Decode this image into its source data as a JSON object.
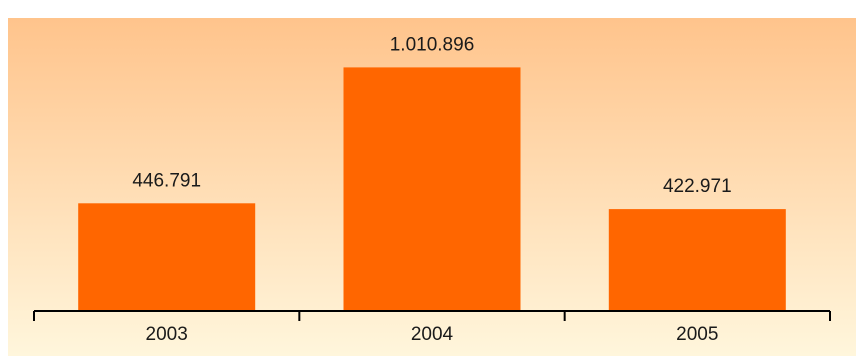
{
  "colors": {
    "bar": "#ff6600",
    "background_top": "#ffc48c",
    "background_bottom": "#fff6dc",
    "axis": "#000000"
  },
  "chart_data": {
    "type": "bar",
    "categories": [
      "2003",
      "2004",
      "2005"
    ],
    "values": [
      446791,
      1010896,
      422971
    ],
    "value_labels": [
      "446.791",
      "1.010.896",
      "422.971"
    ],
    "title": "",
    "xlabel": "",
    "ylabel": "",
    "ylim": [
      0,
      1320000
    ],
    "grid": false,
    "legend": "none"
  }
}
